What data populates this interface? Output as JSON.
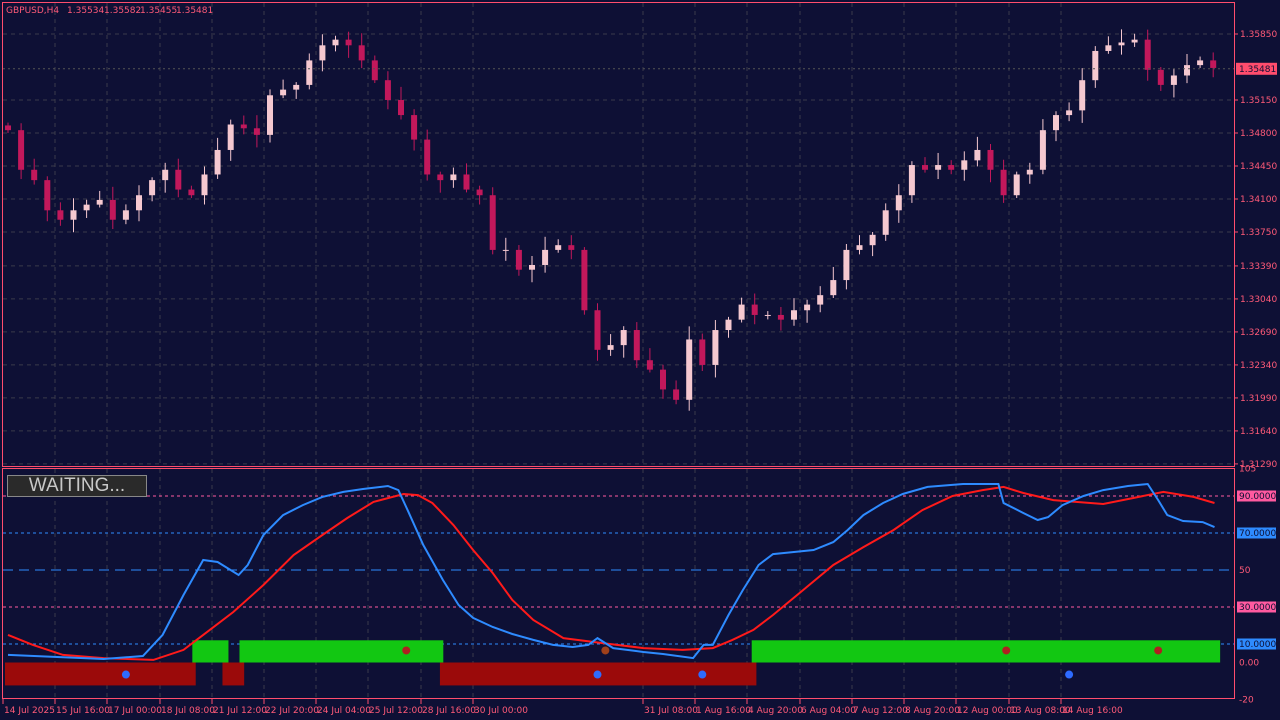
{
  "header": {
    "symbol": "GBPUSD,H4",
    "open": "1.35534",
    "high": "1.35582",
    "low": "1.35455",
    "close": "1.35481"
  },
  "current_price_label": "1.35481",
  "status_label": "WAITING...",
  "colors": {
    "background": "#0e1035",
    "frame": "#ff4d6d",
    "bull_candle": "#f5c8d0",
    "bear_candle": "#c2185b",
    "blue_line": "#2e8bff",
    "red_line": "#ff1a1a",
    "green_bar": "#12c712",
    "red_bar": "#9b0a0a"
  },
  "price_axis": [
    "1.35850",
    "1.35150",
    "1.34800",
    "1.34450",
    "1.34100",
    "1.33750",
    "1.33390",
    "1.33040",
    "1.32690",
    "1.32340",
    "1.31990",
    "1.31640",
    "1.31290"
  ],
  "time_axis": [
    "14 Jul 2025",
    "15 Jul 16:00",
    "17 Jul 00:00",
    "18 Jul 08:00",
    "21 Jul 12:00",
    "22 Jul 20:00",
    "24 Jul 04:00",
    "25 Jul 12:00",
    "28 Jul 16:00",
    "30 Jul 00:00",
    "31 Jul 08:00",
    "1 Aug 16:00",
    "4 Aug 20:00",
    "6 Aug 04:00",
    "7 Aug 12:00",
    "8 Aug 20:00",
    "12 Aug 00:00",
    "13 Aug 08:00",
    "14 Aug 16:00"
  ],
  "closes": [
    1.3483,
    1.3441,
    1.343,
    1.3398,
    1.3388,
    1.3398,
    1.3404,
    1.3409,
    1.3388,
    1.3398,
    1.3414,
    1.343,
    1.3441,
    1.342,
    1.3414,
    1.3436,
    1.3462,
    1.3489,
    1.3485,
    1.3478,
    1.352,
    1.3526,
    1.3531,
    1.3557,
    1.3573,
    1.3579,
    1.3573,
    1.3557,
    1.3536,
    1.3515,
    1.3499,
    1.3473,
    1.3436,
    1.343,
    1.3436,
    1.342,
    1.3414,
    1.3356,
    1.3356,
    1.3335,
    1.334,
    1.3356,
    1.3361,
    1.3356,
    1.3292,
    1.325,
    1.3255,
    1.3271,
    1.3239,
    1.3229,
    1.3208,
    1.3197,
    1.3261,
    1.3234,
    1.3271,
    1.3282,
    1.3298,
    1.3287,
    1.3287,
    1.3282,
    1.3292,
    1.3298,
    1.3308,
    1.3324,
    1.3356,
    1.3361,
    1.3372,
    1.3398,
    1.3414,
    1.3446,
    1.3441,
    1.3446,
    1.3441,
    1.3451,
    1.3462,
    1.3441,
    1.3414,
    1.3436,
    1.3441,
    1.3483,
    1.3499,
    1.3504,
    1.3536,
    1.3567,
    1.3573,
    1.3576,
    1.3579,
    1.3547,
    1.3531,
    1.3541,
    1.3552,
    1.3557,
    1.3549
  ],
  "indicator": {
    "axis_labels": [
      "105",
      "90.0000",
      "70.0000",
      "50",
      "30.0000",
      "10.0000",
      "0.00",
      "-20"
    ],
    "levels": [
      {
        "value": 90,
        "color": "#ff5aa0"
      },
      {
        "value": 70,
        "color": "#2e8bff"
      },
      {
        "value": 50,
        "color": "#2e8bff"
      },
      {
        "value": 30,
        "color": "#ff5aa0"
      },
      {
        "value": 10,
        "color": "#2e8bff"
      }
    ],
    "range": [
      -25,
      107
    ],
    "blue_line": [
      [
        0,
        4.1
      ],
      [
        7.3,
        1.9
      ],
      [
        10.3,
        3.5
      ],
      [
        11.8,
        14.9
      ],
      [
        13.4,
        36.5
      ],
      [
        14.9,
        55.4
      ],
      [
        16,
        54.3
      ],
      [
        17.6,
        47.3
      ],
      [
        18.3,
        52.7
      ],
      [
        19.5,
        68.9
      ],
      [
        21,
        79.7
      ],
      [
        22.5,
        85.1
      ],
      [
        24,
        89.5
      ],
      [
        25.6,
        92.2
      ],
      [
        27.1,
        93.8
      ],
      [
        29,
        95.4
      ],
      [
        29.8,
        93.2
      ],
      [
        30.5,
        82.4
      ],
      [
        31.7,
        63.5
      ],
      [
        33.2,
        44.6
      ],
      [
        34.4,
        31.1
      ],
      [
        35.5,
        24.1
      ],
      [
        37,
        19.2
      ],
      [
        38.5,
        15.4
      ],
      [
        40.1,
        12.2
      ],
      [
        41.6,
        9.5
      ],
      [
        43.1,
        8.4
      ],
      [
        44.3,
        9.5
      ],
      [
        45,
        13.2
      ],
      [
        46.2,
        7.8
      ],
      [
        48.5,
        5.7
      ],
      [
        50,
        4.6
      ],
      [
        52.3,
        2.4
      ],
      [
        53.1,
        9.5
      ],
      [
        53.8,
        9.5
      ],
      [
        55,
        25.7
      ],
      [
        56.1,
        39.2
      ],
      [
        57.3,
        52.7
      ],
      [
        58.4,
        58.6
      ],
      [
        59.9,
        59.7
      ],
      [
        61.5,
        60.8
      ],
      [
        63,
        65.1
      ],
      [
        64.1,
        71.6
      ],
      [
        65.3,
        79.7
      ],
      [
        66.8,
        86.2
      ],
      [
        68.3,
        91.1
      ],
      [
        70.2,
        94.9
      ],
      [
        72.9,
        96.5
      ],
      [
        75.6,
        96.5
      ],
      [
        76,
        86.2
      ],
      [
        77.5,
        80.8
      ],
      [
        78.6,
        77
      ],
      [
        79.4,
        78.6
      ],
      [
        80.5,
        85.1
      ],
      [
        82.1,
        90
      ],
      [
        83.6,
        93.2
      ],
      [
        85.5,
        95.4
      ],
      [
        87,
        96.5
      ],
      [
        87.8,
        87.8
      ],
      [
        88.5,
        79.7
      ],
      [
        89.7,
        76.5
      ],
      [
        91.2,
        75.9
      ],
      [
        92.1,
        73.2
      ]
    ],
    "red_line": [
      [
        0,
        14.9
      ],
      [
        1.9,
        9.5
      ],
      [
        4.2,
        4.1
      ],
      [
        7.3,
        2.4
      ],
      [
        11.1,
        1.4
      ],
      [
        13.4,
        6.8
      ],
      [
        14.9,
        14.9
      ],
      [
        17.2,
        27.3
      ],
      [
        19.5,
        41.9
      ],
      [
        21.8,
        58.1
      ],
      [
        24,
        68.9
      ],
      [
        25.9,
        78.1
      ],
      [
        27.9,
        86.8
      ],
      [
        30.2,
        91.1
      ],
      [
        31.3,
        90.5
      ],
      [
        32.4,
        86.2
      ],
      [
        34,
        74.3
      ],
      [
        35.5,
        60.8
      ],
      [
        37,
        48.4
      ],
      [
        38.5,
        33.8
      ],
      [
        40.1,
        23
      ],
      [
        42.4,
        13.2
      ],
      [
        45.4,
        10.5
      ],
      [
        48.5,
        7.8
      ],
      [
        51.5,
        6.8
      ],
      [
        53.8,
        7.8
      ],
      [
        55.3,
        12.2
      ],
      [
        56.9,
        17.6
      ],
      [
        58.4,
        25.7
      ],
      [
        60.7,
        39.2
      ],
      [
        63,
        52.7
      ],
      [
        65.3,
        62.4
      ],
      [
        67.6,
        71.6
      ],
      [
        69.8,
        82.4
      ],
      [
        72.1,
        90
      ],
      [
        74.4,
        93.2
      ],
      [
        76,
        94.9
      ],
      [
        77.5,
        91.6
      ],
      [
        79.8,
        87.8
      ],
      [
        83.6,
        85.7
      ],
      [
        85.9,
        88.9
      ],
      [
        88.2,
        92.2
      ],
      [
        90.5,
        89.5
      ],
      [
        92.1,
        86.2
      ]
    ],
    "histogram": [
      {
        "from": 0,
        "to": 14.1,
        "value": -12.4,
        "color": "#9b0a0a"
      },
      {
        "from": 14.3,
        "to": 16.6,
        "value": 12,
        "color": "#12c712"
      },
      {
        "from": 16.6,
        "to": 17.8,
        "value": -12.4,
        "color": "#9b0a0a"
      },
      {
        "from": 17.9,
        "to": 33,
        "value": 12,
        "color": "#12c712"
      },
      {
        "from": 33.2,
        "to": 56.9,
        "value": -12.4,
        "color": "#9b0a0a"
      },
      {
        "from": 57,
        "to": 92.3,
        "value": 12,
        "color": "#12c712"
      }
    ],
    "dots": [
      {
        "bar": 9,
        "value": -6.5,
        "color": "#2e6bff"
      },
      {
        "bar": 45,
        "value": -6.5,
        "color": "#2e6bff"
      },
      {
        "bar": 53,
        "value": -6.5,
        "color": "#2e6bff"
      },
      {
        "bar": 81,
        "value": -6.5,
        "color": "#2e6bff"
      },
      {
        "bar": 30.4,
        "value": 6.5,
        "color": "#b02020"
      },
      {
        "bar": 76.2,
        "value": 6.5,
        "color": "#b02020"
      },
      {
        "bar": 87.8,
        "value": 6.5,
        "color": "#b02020"
      },
      {
        "bar": 45.6,
        "value": 6.5,
        "color": "#a0401a"
      }
    ]
  }
}
